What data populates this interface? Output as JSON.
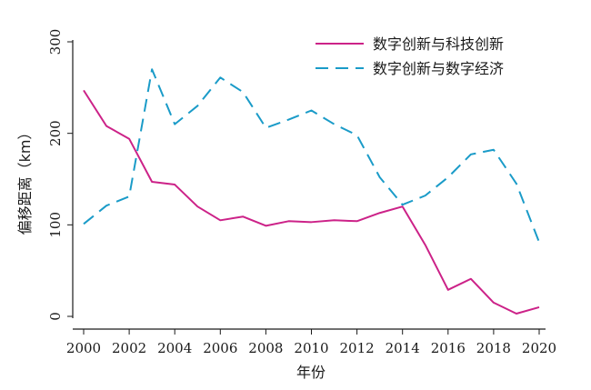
{
  "chart_data": {
    "type": "line",
    "title": "",
    "xlabel": "年份",
    "ylabel": "偏移距离（km）",
    "xlim": [
      2000,
      2020
    ],
    "ylim": [
      0,
      300
    ],
    "xticks": [
      "2000",
      "2002",
      "2004",
      "2006",
      "2008",
      "2010",
      "2012",
      "2014",
      "2016",
      "2018",
      "2020"
    ],
    "yticks": [
      "0",
      "100",
      "200",
      "300"
    ],
    "grid": false,
    "legend_position": "top-right",
    "x": [
      2000,
      2001,
      2002,
      2003,
      2004,
      2005,
      2006,
      2007,
      2008,
      2009,
      2010,
      2011,
      2012,
      2013,
      2014,
      2015,
      2016,
      2017,
      2018,
      2019,
      2020
    ],
    "series": [
      {
        "name": "数字创新与科技创新",
        "color": "#cc2288",
        "style": "solid",
        "values": [
          247,
          208,
          194,
          147,
          144,
          120,
          105,
          109,
          99,
          104,
          103,
          105,
          104,
          113,
          120,
          78,
          29,
          41,
          15,
          3,
          10
        ]
      },
      {
        "name": "数字创新与数字经济",
        "color": "#1a9bc8",
        "style": "dashed",
        "values": [
          101,
          121,
          131,
          270,
          210,
          230,
          261,
          245,
          206,
          215,
          225,
          210,
          198,
          152,
          122,
          132,
          152,
          177,
          182,
          145,
          81
        ]
      }
    ]
  }
}
